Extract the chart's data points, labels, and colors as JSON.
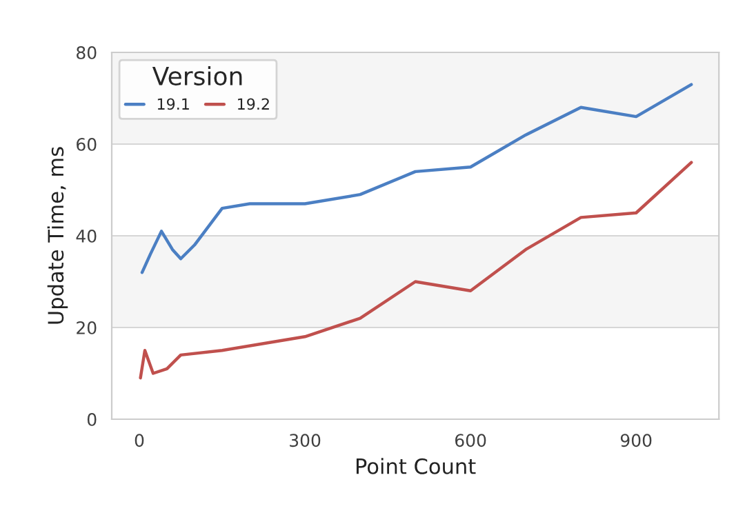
{
  "chart_data": {
    "type": "line",
    "xlabel": "Point Count",
    "ylabel": "Update Time, ms",
    "legend_title": "Version",
    "xlim": [
      -50,
      1050
    ],
    "xticks": [
      0,
      300,
      600,
      900
    ],
    "ylim": [
      0,
      80
    ],
    "yticks": [
      0,
      20,
      40,
      60,
      80
    ],
    "grid": "y",
    "legend": "top left",
    "line_style": "solid",
    "bands": [
      {
        "axis": "y",
        "from": 20,
        "to": 40,
        "color": "#f5f5f5"
      },
      {
        "axis": "y",
        "from": 60,
        "to": 80,
        "color": "#f5f5f5"
      }
    ],
    "series": [
      {
        "name": "19.1",
        "color": "#4b7fc3",
        "x": [
          5,
          20,
          40,
          60,
          75,
          100,
          150,
          200,
          300,
          400,
          500,
          600,
          700,
          800,
          900,
          1000
        ],
        "values": [
          32,
          36,
          41,
          37,
          35,
          38,
          46,
          47,
          47,
          49,
          54,
          55,
          62,
          68,
          66,
          73
        ]
      },
      {
        "name": "19.2",
        "color": "#c0504d",
        "x": [
          2,
          10,
          25,
          50,
          75,
          150,
          300,
          400,
          500,
          600,
          700,
          800,
          900,
          1000
        ],
        "values": [
          9,
          15,
          10,
          11,
          14,
          15,
          18,
          22,
          30,
          28,
          37,
          44,
          45,
          56
        ]
      }
    ]
  }
}
